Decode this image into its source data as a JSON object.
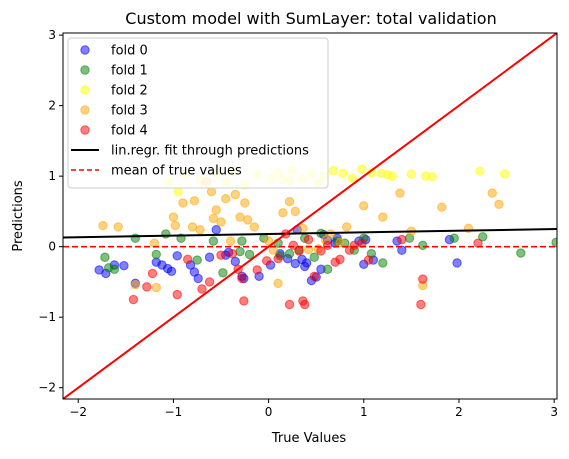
{
  "chart_data": {
    "type": "scatter",
    "title": "Custom model with SumLayer: total validation",
    "xlabel": "True Values",
    "ylabel": "Predictions",
    "xlim": [
      -2.16,
      3.03
    ],
    "ylim": [
      -2.16,
      3.03
    ],
    "xticks": [
      -2,
      -1,
      0,
      1,
      2,
      3
    ],
    "yticks": [
      -2,
      -1,
      0,
      1,
      2,
      3
    ],
    "xtick_labels": [
      "−2",
      "−1",
      "0",
      "1",
      "2",
      "3"
    ],
    "ytick_labels": [
      "−2",
      "−1",
      "0",
      "1",
      "2",
      "3"
    ],
    "grid": false,
    "legend_position": "top-left",
    "series": [
      {
        "name": "fold 0",
        "color": "#0000ff",
        "points": [
          [
            -1.78,
            -0.33
          ],
          [
            -1.71,
            -0.38
          ],
          [
            -1.62,
            -0.26
          ],
          [
            -1.52,
            -0.27
          ],
          [
            -1.4,
            -0.52
          ],
          [
            -1.18,
            -0.22
          ],
          [
            -1.12,
            -0.26
          ],
          [
            -1.06,
            -0.31
          ],
          [
            -1.02,
            -0.35
          ],
          [
            -0.96,
            -0.13
          ],
          [
            -0.82,
            -0.26
          ],
          [
            -0.78,
            -0.36
          ],
          [
            -0.74,
            -0.45
          ],
          [
            -0.62,
            -0.15
          ],
          [
            -0.55,
            0.24
          ],
          [
            -0.45,
            -0.12
          ],
          [
            -0.35,
            -0.21
          ],
          [
            -0.28,
            -0.42
          ],
          [
            -0.26,
            -0.45
          ],
          [
            -0.1,
            -0.42
          ],
          [
            0.02,
            -0.26
          ],
          [
            0.12,
            -0.1
          ],
          [
            0.2,
            -0.17
          ],
          [
            0.28,
            -0.24
          ],
          [
            0.3,
            0.24
          ],
          [
            0.35,
            -0.18
          ],
          [
            0.38,
            -0.28
          ],
          [
            0.4,
            -0.23
          ],
          [
            0.45,
            -0.48
          ],
          [
            0.5,
            -0.43
          ],
          [
            0.55,
            -0.32
          ],
          [
            0.58,
            0.17
          ],
          [
            0.62,
            0.09
          ],
          [
            0.7,
            0.05
          ],
          [
            0.72,
            0.12
          ],
          [
            0.95,
            0.08
          ],
          [
            1.0,
            -0.25
          ],
          [
            1.02,
            0.1
          ],
          [
            1.1,
            -0.19
          ],
          [
            1.35,
            0.08
          ],
          [
            1.4,
            -0.05
          ],
          [
            1.9,
            0.1
          ],
          [
            1.98,
            -0.23
          ],
          [
            -0.42,
            -0.08
          ]
        ]
      },
      {
        "name": "fold 1",
        "color": "#008000",
        "points": [
          [
            -1.72,
            -0.15
          ],
          [
            -1.68,
            -0.3
          ],
          [
            -1.62,
            -0.32
          ],
          [
            -1.4,
            0.12
          ],
          [
            -1.18,
            -0.11
          ],
          [
            -1.08,
            0.18
          ],
          [
            -0.92,
            0.12
          ],
          [
            -0.75,
            -0.19
          ],
          [
            -0.58,
            0.08
          ],
          [
            -0.48,
            -0.37
          ],
          [
            -0.3,
            -0.07
          ],
          [
            -0.2,
            -0.11
          ],
          [
            -0.05,
            0.12
          ],
          [
            0.12,
            -0.13
          ],
          [
            0.22,
            -0.1
          ],
          [
            0.32,
            -0.05
          ],
          [
            0.38,
            0.12
          ],
          [
            0.48,
            -0.15
          ],
          [
            0.55,
            0.19
          ],
          [
            0.62,
            -0.32
          ],
          [
            0.72,
            0.08
          ],
          [
            0.8,
            0.05
          ],
          [
            0.9,
            -0.05
          ],
          [
            1.0,
            0.12
          ],
          [
            1.08,
            -0.1
          ],
          [
            1.2,
            -0.23
          ],
          [
            1.48,
            0.12
          ],
          [
            1.62,
            0.02
          ],
          [
            1.95,
            0.12
          ],
          [
            2.25,
            0.14
          ],
          [
            2.65,
            -0.09
          ],
          [
            3.02,
            0.06
          ],
          [
            -0.28,
            0.08
          ],
          [
            0.1,
            0.05
          ]
        ]
      },
      {
        "name": "fold 2",
        "color": "#ffff00",
        "points": [
          [
            -1.05,
            0.92
          ],
          [
            -0.95,
            0.78
          ],
          [
            -0.88,
            1.02
          ],
          [
            -0.72,
            0.94
          ],
          [
            -0.55,
            1.04
          ],
          [
            -0.45,
            0.92
          ],
          [
            -0.38,
            1.06
          ],
          [
            -0.25,
            0.88
          ],
          [
            -0.12,
            1.02
          ],
          [
            0.02,
            0.96
          ],
          [
            0.1,
            1.05
          ],
          [
            0.22,
            0.93
          ],
          [
            0.25,
            1.08
          ],
          [
            0.35,
            0.96
          ],
          [
            0.45,
            1.04
          ],
          [
            0.52,
            0.9
          ],
          [
            0.68,
            1.08
          ],
          [
            0.78,
            1.04
          ],
          [
            0.88,
            0.97
          ],
          [
            0.98,
            1.1
          ],
          [
            1.08,
            1.05
          ],
          [
            1.18,
            1.04
          ],
          [
            1.25,
            1.02
          ],
          [
            1.3,
            1.0
          ],
          [
            1.5,
            1.03
          ],
          [
            1.65,
            1.0
          ],
          [
            1.72,
            0.99
          ],
          [
            2.22,
            1.07
          ],
          [
            2.48,
            1.03
          ],
          [
            0.58,
            1.0
          ],
          [
            0.15,
            0.95
          ]
        ]
      },
      {
        "name": "fold 3",
        "color": "#ffa500",
        "points": [
          [
            -1.74,
            0.3
          ],
          [
            -1.58,
            0.28
          ],
          [
            -1.4,
            -0.54
          ],
          [
            -1.2,
            0.05
          ],
          [
            -1.0,
            0.42
          ],
          [
            -0.98,
            0.3
          ],
          [
            -0.9,
            0.62
          ],
          [
            -0.8,
            0.28
          ],
          [
            -0.78,
            0.65
          ],
          [
            -0.72,
            0.24
          ],
          [
            -0.65,
            0.92
          ],
          [
            -0.6,
            0.78
          ],
          [
            -0.58,
            0.4
          ],
          [
            -0.55,
            0.52
          ],
          [
            -0.5,
            0.35
          ],
          [
            -0.45,
            0.68
          ],
          [
            -0.35,
            0.74
          ],
          [
            -0.3,
            0.42
          ],
          [
            -0.25,
            0.62
          ],
          [
            -0.22,
            0.38
          ],
          [
            -0.15,
            0.28
          ],
          [
            0.0,
            0.08
          ],
          [
            0.1,
            -0.52
          ],
          [
            0.15,
            0.48
          ],
          [
            0.22,
            0.64
          ],
          [
            0.28,
            0.5
          ],
          [
            0.36,
            0.26
          ],
          [
            0.42,
            -0.04
          ],
          [
            0.52,
            -0.03
          ],
          [
            0.65,
            0.18
          ],
          [
            0.75,
            0.06
          ],
          [
            0.82,
            0.28
          ],
          [
            1.0,
            0.58
          ],
          [
            1.2,
            0.42
          ],
          [
            1.38,
            0.76
          ],
          [
            1.5,
            0.22
          ],
          [
            1.62,
            -0.55
          ],
          [
            1.82,
            0.56
          ],
          [
            2.1,
            0.26
          ],
          [
            2.35,
            0.76
          ],
          [
            2.42,
            0.6
          ],
          [
            0.6,
            0.09
          ],
          [
            0.05,
            -0.05
          ],
          [
            -0.4,
            0.08
          ],
          [
            -1.18,
            -0.58
          ]
        ]
      },
      {
        "name": "fold 4",
        "color": "#ff0000",
        "points": [
          [
            -1.42,
            -0.75
          ],
          [
            -1.28,
            -0.57
          ],
          [
            -1.22,
            -0.38
          ],
          [
            -0.96,
            -0.68
          ],
          [
            -0.85,
            -0.18
          ],
          [
            -0.7,
            -0.6
          ],
          [
            -0.62,
            -0.5
          ],
          [
            -0.5,
            -0.12
          ],
          [
            -0.38,
            -0.1
          ],
          [
            -0.32,
            -0.32
          ],
          [
            -0.28,
            -0.45
          ],
          [
            -0.26,
            -0.77
          ],
          [
            -0.12,
            -0.33
          ],
          [
            -0.02,
            -0.2
          ],
          [
            0.1,
            -0.17
          ],
          [
            0.18,
            0.18
          ],
          [
            0.22,
            -0.82
          ],
          [
            0.26,
            0.02
          ],
          [
            0.32,
            -0.06
          ],
          [
            0.36,
            -0.77
          ],
          [
            0.38,
            -0.82
          ],
          [
            0.42,
            0.1
          ],
          [
            0.48,
            -0.42
          ],
          [
            0.55,
            -0.06
          ],
          [
            0.62,
            0.02
          ],
          [
            0.7,
            -0.22
          ],
          [
            0.75,
            -0.18
          ],
          [
            0.85,
            -0.05
          ],
          [
            0.98,
            0.05
          ],
          [
            1.05,
            -0.19
          ],
          [
            1.4,
            0.1
          ],
          [
            1.6,
            -0.82
          ],
          [
            1.62,
            -0.46
          ],
          [
            2.2,
            0.05
          ],
          [
            0.9,
            0.02
          ]
        ]
      }
    ],
    "regression_line": {
      "name": "lin.regr. fit through predictions",
      "color": "#000000",
      "points": [
        [
          -2.16,
          0.13
        ],
        [
          3.03,
          0.25
        ]
      ]
    },
    "mean_line": {
      "name": "mean of true values",
      "color": "#ff0000",
      "y": 0.0
    },
    "identity_line": {
      "color": "#ff0000",
      "points": [
        [
          -2.16,
          -2.16
        ],
        [
          3.03,
          3.03
        ]
      ]
    }
  }
}
